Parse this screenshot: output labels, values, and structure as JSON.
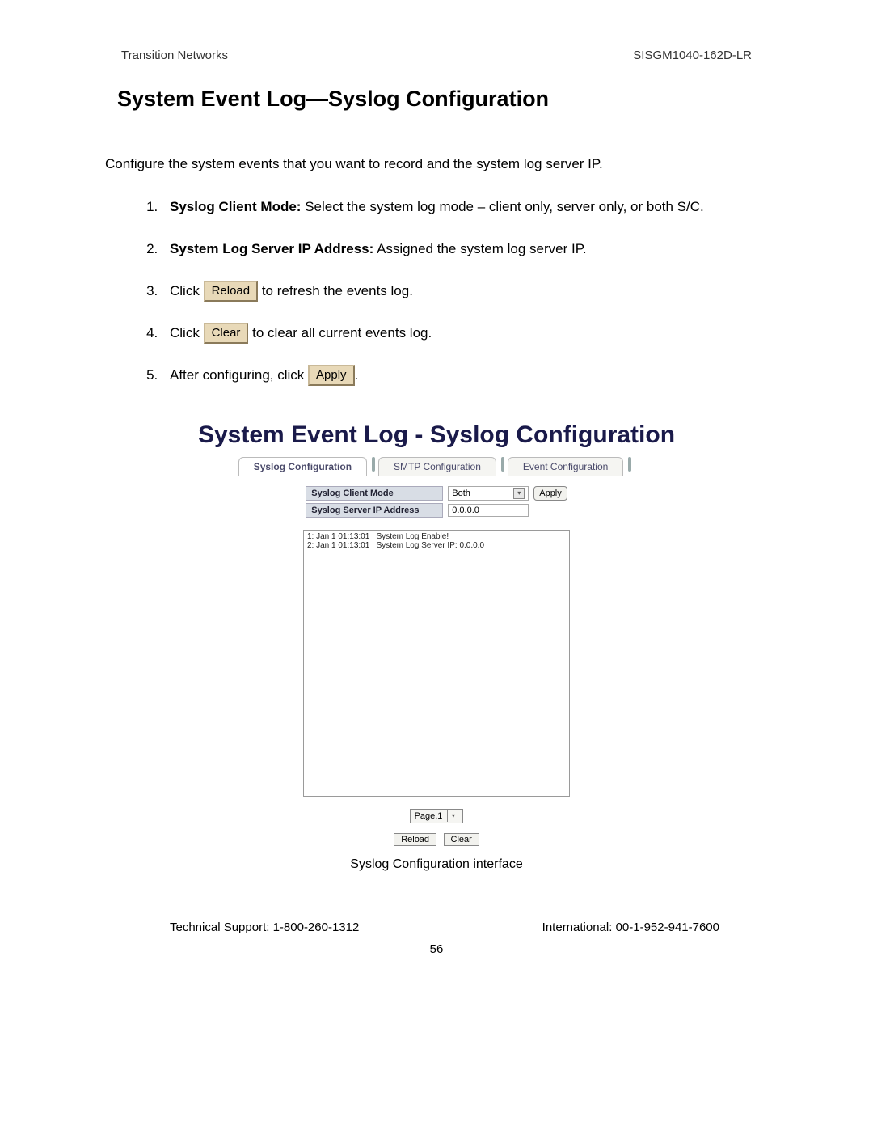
{
  "header": {
    "left": "Transition Networks",
    "right": "SISGM1040-162D-LR"
  },
  "title": "System Event Log—Syslog Configuration",
  "intro": "Configure the system events that you want to record and the system log server IP.",
  "steps": {
    "s1": {
      "bold": "Syslog Client Mode:",
      "rest": " Select the system log mode – client only, server only, or both S/C."
    },
    "s2": {
      "bold": "System Log Server IP Address:",
      "rest": " Assigned the system log server IP."
    },
    "s3": {
      "pre": "Click ",
      "btn": "Reload",
      "post": " to refresh the events log."
    },
    "s4": {
      "pre": "Click ",
      "btn": "Clear",
      "post": " to clear all current events log."
    },
    "s5": {
      "pre": " After configuring, click ",
      "btn": "Apply",
      "post": "."
    }
  },
  "panel": {
    "title": "System Event Log - Syslog Configuration",
    "tabs": {
      "active": "Syslog Configuration",
      "t2": "SMTP Configuration",
      "t3": "Event Configuration"
    },
    "cfg": {
      "mode_label": "Syslog Client Mode",
      "mode_value": "Both",
      "ip_label": "Syslog Server IP Address",
      "ip_value": "0.0.0.0",
      "apply": "Apply"
    },
    "log_rows": [
      "1: Jan 1 01:13:01 : System Log Enable!",
      "2: Jan 1 01:13:01 : System Log Server IP: 0.0.0.0"
    ],
    "pager": "Page.1",
    "reload": "Reload",
    "clear": "Clear",
    "caption": "Syslog Configuration interface"
  },
  "footer": {
    "left": "Technical Support: 1-800-260-1312",
    "right": "International: 00-1-952-941-7600",
    "page": "56"
  },
  "colors": {
    "btn_bg": "#e8d9b8",
    "btn_border": "#9a8a6a",
    "panel_title": "#1a1a4a",
    "cfg_label_bg": "#d8dde5"
  }
}
